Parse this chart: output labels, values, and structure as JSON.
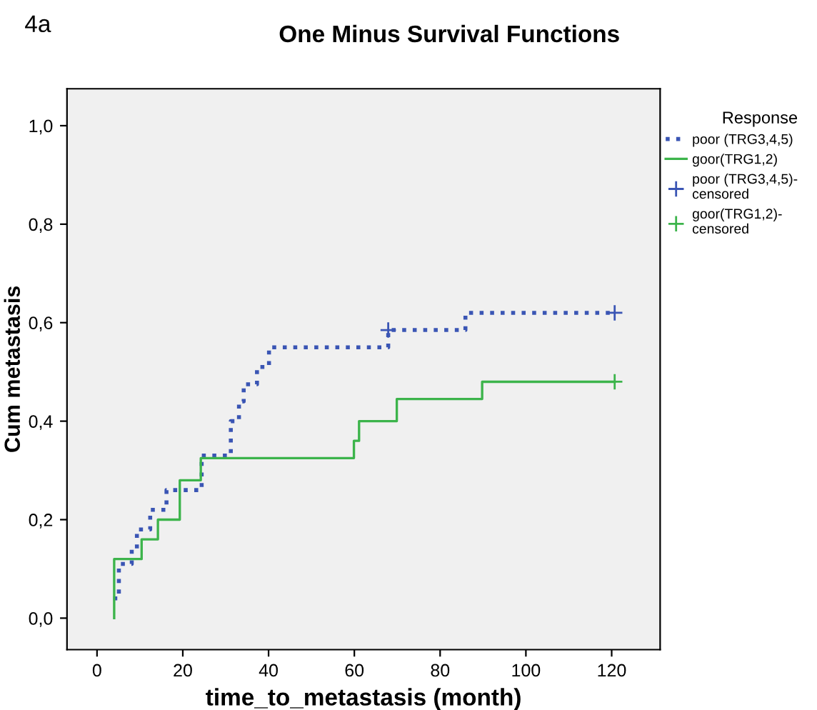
{
  "chart_data": {
    "type": "step",
    "title": "One Minus Survival Functions",
    "annotations": [
      "4a"
    ],
    "xlabel": "time_to_metastasis (month)",
    "ylabel": "Cum metastasis",
    "legend_title": "Response",
    "legend": "right",
    "grid": false,
    "xlim": [
      -7,
      131.3
    ],
    "ylim": [
      -0.064,
      1.075
    ],
    "xticks": [
      0,
      20,
      40,
      60,
      80,
      100,
      120
    ],
    "yticks": [
      {
        "value": 0,
        "label": "0,0"
      },
      {
        "value": 0.2,
        "label": "0,2"
      },
      {
        "value": 0.4,
        "label": "0,4"
      },
      {
        "value": 0.6,
        "label": "0,6"
      },
      {
        "value": 0.8,
        "label": "0,8"
      },
      {
        "value": 1,
        "label": "1,0"
      }
    ],
    "series": [
      {
        "name": "poor (TRG3,4,5)",
        "color": "#3a55b4",
        "line_style": "dotted",
        "x": [
          3.8,
          5.1,
          8.1,
          9.3,
          12.4,
          16.2,
          24.4,
          31.2,
          33.1,
          34.2,
          37.3,
          40.1,
          67.9,
          85.9,
          120.7
        ],
        "values": [
          0.04,
          0.11,
          0.14,
          0.18,
          0.22,
          0.26,
          0.33,
          0.4,
          0.44,
          0.475,
          0.51,
          0.55,
          0.585,
          0.62,
          0.62
        ]
      },
      {
        "name": "goor(TRG1,2)",
        "color": "#3cb44b",
        "line_style": "solid",
        "x": [
          4,
          4,
          10.4,
          14.2,
          19.3,
          24.2,
          59.9,
          61.1,
          69.9,
          89.8,
          120.7
        ],
        "values": [
          0,
          0.12,
          0.16,
          0.2,
          0.28,
          0.325,
          0.36,
          0.4,
          0.445,
          0.48,
          0.48
        ]
      },
      {
        "name": "poor (TRG3,4,5)-\ncensored",
        "type": "scatter",
        "marker": "cross",
        "color": "#3a55b4",
        "x": [
          67.9,
          120.7
        ],
        "values": [
          0.585,
          0.62
        ]
      },
      {
        "name": "goor(TRG1,2)-\ncensored",
        "type": "scatter",
        "marker": "cross",
        "color": "#3cb44b",
        "x": [
          120.7
        ],
        "values": [
          0.48
        ]
      }
    ]
  }
}
